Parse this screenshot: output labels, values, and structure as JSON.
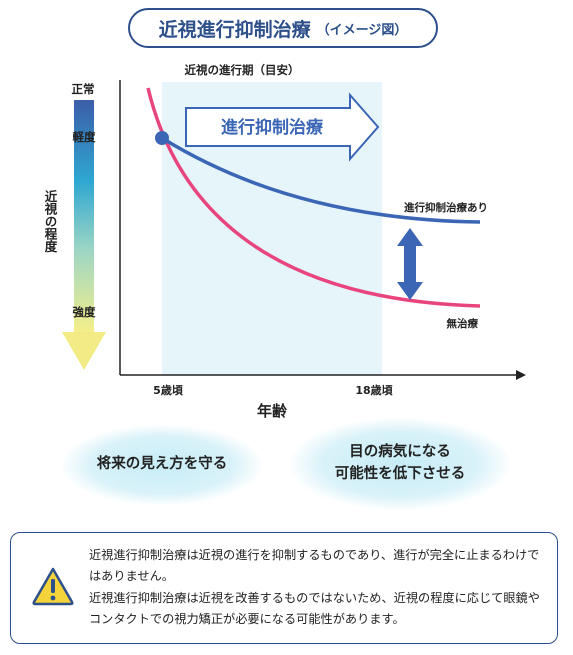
{
  "title": {
    "main": "近視進行抑制治療",
    "sub": "（イメージ図）"
  },
  "chart_data": {
    "type": "line",
    "band_label": "近視の進行期（目安）",
    "band_x": [
      5,
      18
    ],
    "arrow_label": "進行抑制治療",
    "y_axis": {
      "label": "近視の程度",
      "top": "正常",
      "mild": "軽度",
      "severe": "強度"
    },
    "x_axis": {
      "label": "年齢",
      "ticks": [
        {
          "value": 5,
          "label": "5歳頃"
        },
        {
          "value": 18,
          "label": "18歳頃"
        }
      ]
    },
    "series": [
      {
        "name": "進行抑制治療あり",
        "color": "#3a66b5",
        "shape": "treated"
      },
      {
        "name": "無治療",
        "color": "#e8457f",
        "shape": "untreated"
      }
    ],
    "start_point": {
      "x": 5
    }
  },
  "benefits": {
    "left": "将来の見え方を守る",
    "right_line1": "目の病気になる",
    "right_line2": "可能性を低下させる"
  },
  "notice": {
    "line1": "近視進行抑制治療は近視の進行を抑制するものであり、進行が完全に止まるわけではありません。",
    "line2": "近視進行抑制治療は近視を改善するものではないため、近視の程度に応じて眼鏡やコンタクトでの視力矯正が必要になる可能性があります。"
  }
}
